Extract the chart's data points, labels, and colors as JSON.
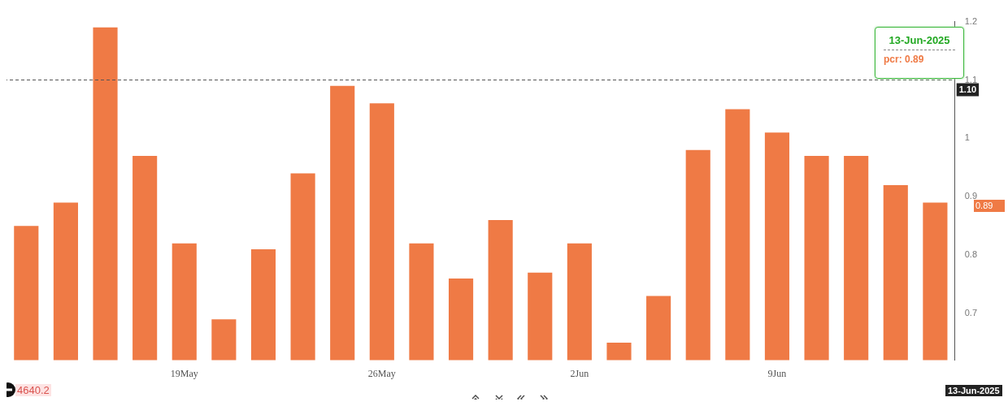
{
  "chart_data": {
    "type": "bar",
    "categories": [
      null,
      null,
      null,
      null,
      "19May",
      null,
      null,
      null,
      null,
      "26May",
      null,
      null,
      null,
      null,
      "2Jun",
      null,
      null,
      null,
      null,
      "9Jun",
      null,
      null,
      null,
      null
    ],
    "series": [
      {
        "color": "#ef7a45",
        "values": [
          0.85,
          0.89,
          1.19,
          0.97,
          0.82,
          0.69,
          0.81,
          0.94,
          1.09,
          1.06,
          0.82,
          0.76,
          0.86,
          0.77,
          0.82,
          0.65,
          0.73,
          0.98,
          1.05,
          1.01,
          0.97,
          0.97,
          0.92,
          0.89
        ]
      }
    ],
    "ylim": [
      0.62,
      1.2
    ],
    "yticks": [
      0.7,
      0.8,
      0.9,
      1,
      1.1,
      1.2
    ],
    "grid": false,
    "legend": false,
    "ref_lines": [
      {
        "axis": "y",
        "value": 1.1,
        "label": "1.10",
        "color": "#555555",
        "line_style": "dashed"
      }
    ],
    "annotations": [
      "13-Jun-2025",
      "pcr: 0.89",
      "0.89",
      "4640.2",
      "13-Jun-2025"
    ]
  }
}
